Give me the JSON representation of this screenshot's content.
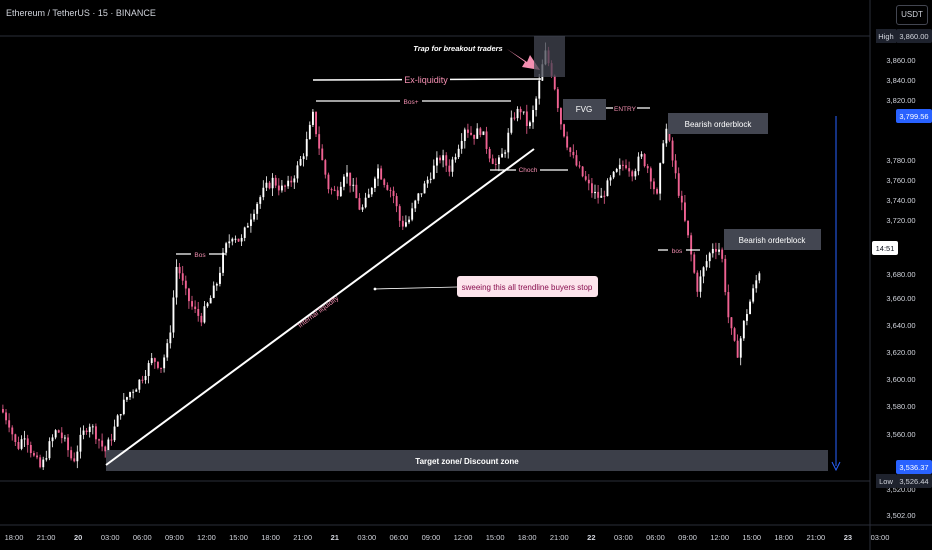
{
  "header": {
    "title": "Ethereum / TetherUS · 15 · BINANCE",
    "currency": "USDT"
  },
  "price_axis": {
    "ticks": [
      "3,860.00",
      "3,840.00",
      "3,820.00",
      "3,780.00",
      "3,760.00",
      "3,740.00",
      "3,720.00",
      "3,680.00",
      "3,660.00",
      "3,640.00",
      "3,620.00",
      "3,600.00",
      "3,580.00",
      "3,560.00",
      "3,520.00",
      "3,502.00"
    ],
    "tags": [
      {
        "label": "High",
        "value": "3,860.00",
        "color": "#1e222d",
        "text": "#d1d4dc"
      },
      {
        "label": "",
        "value": "3,799.56",
        "color": "#2962ff",
        "text": "#ffffff"
      },
      {
        "label": "",
        "value": "14:51",
        "color": "#ffffff",
        "text": "#131722"
      },
      {
        "label": "",
        "value": "3,536.37",
        "color": "#2962ff",
        "text": "#ffffff"
      },
      {
        "label": "Low",
        "value": "3,526.44",
        "color": "#1e222d",
        "text": "#d1d4dc"
      }
    ]
  },
  "time_axis": {
    "ticks": [
      "18:00",
      "21:00",
      "20",
      "03:00",
      "06:00",
      "09:00",
      "12:00",
      "15:00",
      "18:00",
      "21:00",
      "21",
      "03:00",
      "06:00",
      "09:00",
      "12:00",
      "15:00",
      "18:00",
      "21:00",
      "22",
      "03:00",
      "06:00",
      "09:00",
      "12:00",
      "15:00",
      "18:00",
      "21:00",
      "23",
      "03:00"
    ]
  },
  "annotations": {
    "trap": "Trap for breakout traders",
    "ex_liquidity": "Ex-liquidity",
    "bos_top": "Bos+",
    "fvg": "FVG",
    "entry": "ENTRY",
    "bearish_ob_1": "Bearish orderblock",
    "choch": "Choch",
    "bos_left": "Bos",
    "bos_right": "bos",
    "bearish_ob_2": "Bearish orderblock",
    "sweep": "sweeing this all trendline buyers stop",
    "internal_liquidity": "Internal liquidity",
    "target_zone": "Target zone/ Discount zone"
  },
  "colors": {
    "bull": "#ffffff",
    "bear": "#f06292",
    "accent": "#f48fb1",
    "blue": "#2962ff"
  },
  "chart_data": {
    "type": "candlestick",
    "symbol": "ETHUSDT",
    "interval": "15",
    "exchange": "BINANCE",
    "y_range": [
      3502,
      3872
    ],
    "high": 3860.0,
    "low": 3526.44,
    "projection_target": 3536.37,
    "entry_level": 3799.56,
    "close_path": [
      [
        0,
        3580
      ],
      [
        8,
        3570
      ],
      [
        16,
        3550
      ],
      [
        24,
        3562
      ],
      [
        32,
        3545
      ],
      [
        40,
        3535
      ],
      [
        48,
        3552
      ],
      [
        56,
        3565
      ],
      [
        64,
        3555
      ],
      [
        72,
        3540
      ],
      [
        80,
        3558
      ],
      [
        88,
        3570
      ],
      [
        96,
        3560
      ],
      [
        104,
        3548
      ],
      [
        112,
        3562
      ],
      [
        120,
        3580
      ],
      [
        128,
        3592
      ],
      [
        136,
        3598
      ],
      [
        144,
        3608
      ],
      [
        152,
        3618
      ],
      [
        160,
        3612
      ],
      [
        168,
        3630
      ],
      [
        176,
        3690
      ],
      [
        184,
        3668
      ],
      [
        192,
        3655
      ],
      [
        200,
        3648
      ],
      [
        208,
        3660
      ],
      [
        216,
        3675
      ],
      [
        224,
        3700
      ],
      [
        232,
        3712
      ],
      [
        240,
        3705
      ],
      [
        248,
        3722
      ],
      [
        256,
        3735
      ],
      [
        264,
        3745
      ],
      [
        272,
        3752
      ],
      [
        280,
        3745
      ],
      [
        288,
        3748
      ],
      [
        296,
        3760
      ],
      [
        304,
        3775
      ],
      [
        312,
        3800
      ],
      [
        320,
        3770
      ],
      [
        328,
        3745
      ],
      [
        336,
        3742
      ],
      [
        344,
        3760
      ],
      [
        352,
        3745
      ],
      [
        360,
        3728
      ],
      [
        368,
        3740
      ],
      [
        376,
        3762
      ],
      [
        384,
        3750
      ],
      [
        392,
        3742
      ],
      [
        400,
        3718
      ],
      [
        408,
        3722
      ],
      [
        416,
        3738
      ],
      [
        424,
        3748
      ],
      [
        432,
        3760
      ],
      [
        440,
        3770
      ],
      [
        448,
        3760
      ],
      [
        456,
        3775
      ],
      [
        464,
        3792
      ],
      [
        472,
        3785
      ],
      [
        480,
        3790
      ],
      [
        488,
        3772
      ],
      [
        496,
        3762
      ],
      [
        504,
        3775
      ],
      [
        512,
        3800
      ],
      [
        520,
        3805
      ],
      [
        528,
        3790
      ],
      [
        536,
        3815
      ],
      [
        544,
        3848
      ],
      [
        552,
        3830
      ],
      [
        560,
        3795
      ],
      [
        568,
        3775
      ],
      [
        576,
        3762
      ],
      [
        584,
        3752
      ],
      [
        592,
        3742
      ],
      [
        600,
        3738
      ],
      [
        608,
        3750
      ],
      [
        616,
        3758
      ],
      [
        624,
        3765
      ],
      [
        632,
        3758
      ],
      [
        640,
        3770
      ],
      [
        648,
        3760
      ],
      [
        656,
        3738
      ],
      [
        664,
        3795
      ],
      [
        672,
        3765
      ],
      [
        680,
        3735
      ],
      [
        688,
        3705
      ],
      [
        696,
        3670
      ],
      [
        704,
        3688
      ],
      [
        712,
        3702
      ],
      [
        720,
        3700
      ],
      [
        728,
        3645
      ],
      [
        736,
        3620
      ],
      [
        744,
        3648
      ],
      [
        752,
        3668
      ],
      [
        760,
        3688
      ]
    ],
    "zones": [
      {
        "label": "Target zone/ Discount zone",
        "y_top": 3552,
        "y_bottom": 3541
      },
      {
        "label": "Bearish orderblock",
        "y_top": 3802,
        "y_bottom": 3792
      },
      {
        "label": "Bearish orderblock",
        "y_top": 3707,
        "y_bottom": 3697
      },
      {
        "label": "FVG",
        "y_top": 3818,
        "y_bottom": 3808
      }
    ]
  }
}
